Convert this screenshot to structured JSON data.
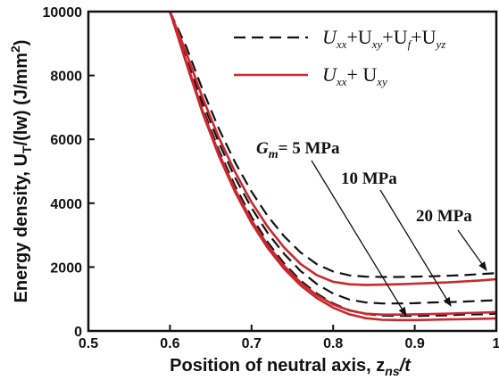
{
  "chart_data": {
    "type": "line",
    "xlabel": "Position of neutral axis, z",
    "xlabel_sub": "ns",
    "xlabel_tail": "/t",
    "ylabel": "Energy density, U",
    "ylabel_sub": "T",
    "ylabel_tail": "/(lw) (J/mm",
    "ylabel_sup": "2",
    "ylabel_end": ")",
    "xlim": [
      0.5,
      1.0
    ],
    "ylim": [
      0,
      10000
    ],
    "xticks": [
      "0.5",
      "0.6",
      "0.7",
      "0.8",
      "0.9",
      "1"
    ],
    "yticks": [
      "0",
      "2000",
      "4000",
      "6000",
      "8000",
      "10000"
    ],
    "legend_position": "top-right",
    "legend": [
      {
        "style": "dashed",
        "color": "#111111",
        "terms": [
          "xx",
          "xy",
          "f",
          "yz"
        ]
      },
      {
        "style": "solid",
        "color": "#c8282e",
        "terms": [
          "xx",
          "xy"
        ]
      }
    ],
    "annotations": [
      {
        "prefix": "G",
        "prefix_sub": "m",
        "text": "= 5 MPa"
      },
      {
        "text": "10 MPa"
      },
      {
        "text": "20 MPa"
      }
    ],
    "series": [
      {
        "group": "5 MPa",
        "style": "dashed",
        "color": "#111111",
        "x": [
          0.6,
          0.62,
          0.64,
          0.66,
          0.68,
          0.7,
          0.72,
          0.74,
          0.76,
          0.78,
          0.8,
          0.82,
          0.84,
          0.86,
          0.88,
          0.9,
          0.92,
          0.94,
          0.96,
          0.98,
          1.0
        ],
        "y": [
          10000,
          8500,
          6980,
          5660,
          4530,
          3570,
          2770,
          2110,
          1580,
          1170,
          860,
          650,
          530,
          480,
          470,
          470,
          480,
          490,
          510,
          520,
          540
        ]
      },
      {
        "group": "5 MPa",
        "style": "solid",
        "color": "#c8282e",
        "x": [
          0.6,
          0.62,
          0.64,
          0.66,
          0.68,
          0.7,
          0.72,
          0.74,
          0.76,
          0.78,
          0.8,
          0.82,
          0.84,
          0.86,
          0.88,
          0.9,
          0.92,
          0.94,
          0.96,
          0.98,
          1.0
        ],
        "y": [
          10000,
          8380,
          6820,
          5480,
          4340,
          3380,
          2590,
          1940,
          1430,
          1030,
          730,
          520,
          400,
          350,
          340,
          340,
          350,
          360,
          370,
          380,
          390
        ]
      },
      {
        "group": "10 MPa",
        "style": "dashed",
        "color": "#111111",
        "x": [
          0.6,
          0.62,
          0.64,
          0.66,
          0.68,
          0.7,
          0.72,
          0.74,
          0.76,
          0.78,
          0.8,
          0.82,
          0.84,
          0.86,
          0.88,
          0.9,
          0.92,
          0.94,
          0.96,
          0.98,
          1.0
        ],
        "y": [
          10000,
          8640,
          7170,
          5890,
          4790,
          3850,
          3060,
          2410,
          1880,
          1470,
          1170,
          980,
          890,
          860,
          860,
          870,
          890,
          900,
          920,
          940,
          960
        ]
      },
      {
        "group": "10 MPa",
        "style": "solid",
        "color": "#c8282e",
        "x": [
          0.6,
          0.62,
          0.64,
          0.66,
          0.68,
          0.7,
          0.72,
          0.74,
          0.76,
          0.78,
          0.8,
          0.82,
          0.84,
          0.86,
          0.88,
          0.9,
          0.92,
          0.94,
          0.96,
          0.98,
          1.0
        ],
        "y": [
          10000,
          8430,
          6890,
          5560,
          4420,
          3460,
          2680,
          2030,
          1520,
          1120,
          830,
          640,
          540,
          510,
          510,
          520,
          530,
          540,
          560,
          570,
          590
        ]
      },
      {
        "group": "20 MPa",
        "style": "dashed",
        "color": "#111111",
        "x": [
          0.6,
          0.62,
          0.64,
          0.66,
          0.68,
          0.7,
          0.72,
          0.74,
          0.76,
          0.78,
          0.8,
          0.82,
          0.84,
          0.86,
          0.88,
          0.9,
          0.92,
          0.94,
          0.96,
          0.98,
          1.0
        ],
        "y": [
          10000,
          8900,
          7550,
          6330,
          5270,
          4360,
          3590,
          2960,
          2460,
          2090,
          1860,
          1740,
          1700,
          1690,
          1690,
          1700,
          1710,
          1730,
          1750,
          1780,
          1810
        ]
      },
      {
        "group": "20 MPa",
        "style": "solid",
        "color": "#c8282e",
        "x": [
          0.6,
          0.62,
          0.64,
          0.66,
          0.68,
          0.7,
          0.72,
          0.74,
          0.76,
          0.78,
          0.8,
          0.82,
          0.84,
          0.86,
          0.88,
          0.9,
          0.92,
          0.94,
          0.96,
          0.98,
          1.0
        ],
        "y": [
          10000,
          8700,
          7300,
          6050,
          4970,
          4030,
          3250,
          2610,
          2100,
          1750,
          1540,
          1460,
          1440,
          1450,
          1460,
          1480,
          1500,
          1520,
          1550,
          1580,
          1620
        ]
      }
    ]
  }
}
